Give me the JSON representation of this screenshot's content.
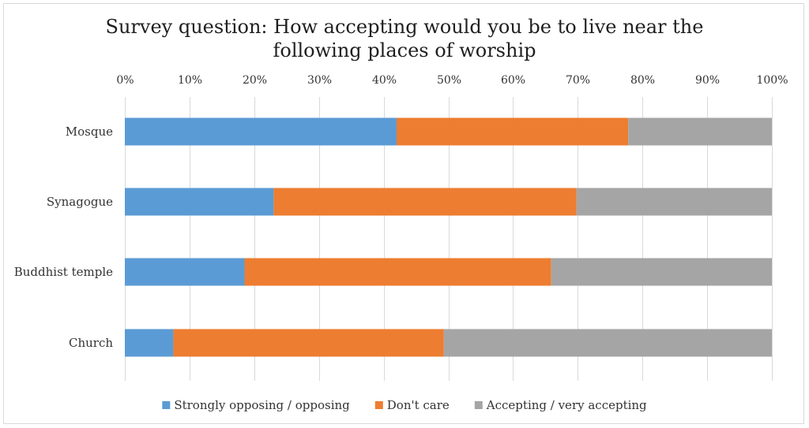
{
  "chart_data": {
    "type": "bar",
    "orientation": "horizontal",
    "stacked": true,
    "title_lines": [
      "Survey question: How accepting would you be to live near the",
      "following places of worship"
    ],
    "categories": [
      "Mosque",
      "Synagogue",
      "Buddhist temple",
      "Church"
    ],
    "series": [
      {
        "name": "Strongly opposing / opposing",
        "color": "#5b9bd5",
        "values": [
          42,
          23,
          18.5,
          7.5
        ]
      },
      {
        "name": "Don't care",
        "color": "#ed7d31",
        "values": [
          35.8,
          46.8,
          47.4,
          41.8
        ]
      },
      {
        "name": "Accepting / very accepting",
        "color": "#a5a5a5",
        "values": [
          22.2,
          30.2,
          34.1,
          50.7
        ]
      }
    ],
    "xlim": [
      0,
      100
    ],
    "x_ticks": [
      "0%",
      "10%",
      "20%",
      "30%",
      "40%",
      "50%",
      "60%",
      "70%",
      "80%",
      "90%",
      "100%"
    ],
    "x_axis_position": "top",
    "grid": true,
    "legend_position": "bottom"
  }
}
